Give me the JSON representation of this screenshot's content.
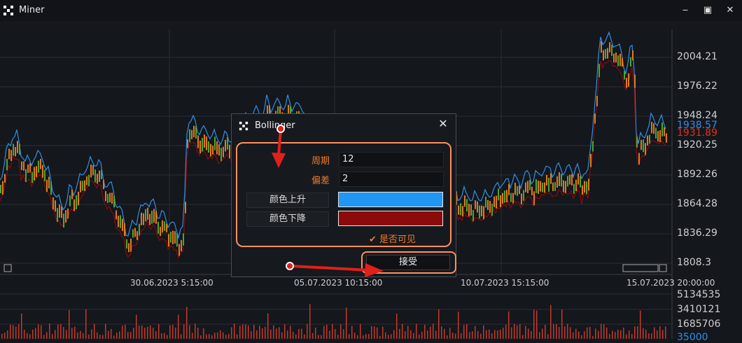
{
  "window": {
    "title": "Miner",
    "minimize_label": "‒",
    "maximize_label": "▣",
    "close_label": "✕"
  },
  "chart": {
    "price_axis": [
      "2004.21",
      "1976.22",
      "1948.24",
      "1920.25",
      "1892.26",
      "1864.28",
      "1836.29",
      "1808.3"
    ],
    "price_upper": "1938.57",
    "price_lower": "1931.89",
    "date_axis": [
      "30.06.2023 5:15:00",
      "05.07.2023 10:15:00",
      "10.07.2023 15:15:00",
      "15.07.2023 20:00:00"
    ],
    "volume_axis": [
      "5134535",
      "3410121",
      "1685706",
      "35000"
    ],
    "colors": {
      "upper_band": "#2f8fe8",
      "lower_band": "#8b0a0a",
      "candle_up": "#e07a20",
      "candle_mid": "#4aa832"
    }
  },
  "dialog": {
    "title": "Bollinger",
    "close_label": "✕",
    "period_label": "周期",
    "period_value": "12",
    "deviation_label": "偏差",
    "deviation_value": "2",
    "color_up_label": "颜色上升",
    "color_up": "#2196f3",
    "color_down_label": "颜色下降",
    "color_down": "#8b0a0a",
    "visible_label": "是否可见",
    "visible_check": "✔",
    "accept_label": "接受"
  }
}
